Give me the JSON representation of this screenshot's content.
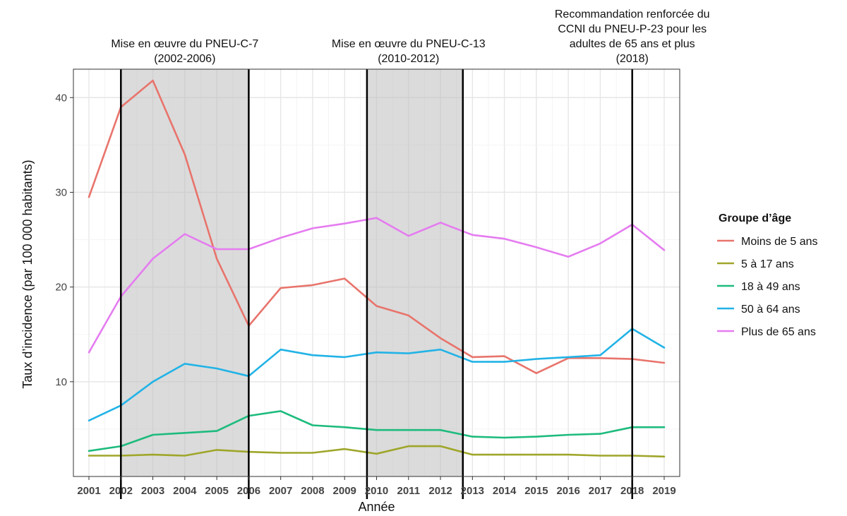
{
  "chart_data": {
    "type": "line",
    "xlabel": "Année",
    "ylabel": "Taux d’incidence (par 100 000 habitants)",
    "x": [
      2001,
      2002,
      2003,
      2004,
      2005,
      2006,
      2007,
      2008,
      2009,
      2010,
      2011,
      2012,
      2013,
      2014,
      2015,
      2016,
      2017,
      2018,
      2019
    ],
    "xlim": [
      2001,
      2019
    ],
    "ylim": [
      0,
      43
    ],
    "yticks": [
      10,
      20,
      30,
      40
    ],
    "grid": true,
    "legend": {
      "title": "Groupe d’âge",
      "placement": "right"
    },
    "series": [
      {
        "name": "Moins de 5 ans",
        "color": "#e8746c",
        "values": [
          29.5,
          39.0,
          41.8,
          34.0,
          23.0,
          15.9,
          19.9,
          20.2,
          20.9,
          18.0,
          17.0,
          14.6,
          12.6,
          12.7,
          10.9,
          12.5,
          12.5,
          12.4,
          12.0
        ]
      },
      {
        "name": "5 à 17 ans",
        "color": "#9fa62a",
        "values": [
          2.2,
          2.2,
          2.3,
          2.2,
          2.8,
          2.6,
          2.5,
          2.5,
          2.9,
          2.4,
          3.2,
          3.2,
          2.3,
          2.3,
          2.3,
          2.3,
          2.2,
          2.2,
          2.1
        ]
      },
      {
        "name": "18 à 49 ans",
        "color": "#1dbb7d",
        "values": [
          2.7,
          3.2,
          4.4,
          4.6,
          4.8,
          6.4,
          6.9,
          5.4,
          5.2,
          4.9,
          4.9,
          4.9,
          4.2,
          4.1,
          4.2,
          4.4,
          4.5,
          5.2,
          5.2
        ]
      },
      {
        "name": "50 à 64 ans",
        "color": "#22b3e6",
        "values": [
          5.9,
          7.5,
          10.0,
          11.9,
          11.4,
          10.6,
          13.4,
          12.8,
          12.6,
          13.1,
          13.0,
          13.4,
          12.1,
          12.1,
          12.4,
          12.6,
          12.8,
          15.6,
          13.6
        ]
      },
      {
        "name": "Plus de 65 ans",
        "color": "#e57cf0",
        "values": [
          13.1,
          19.0,
          23.0,
          25.6,
          24.0,
          24.0,
          25.2,
          26.2,
          26.7,
          27.3,
          25.4,
          26.8,
          25.5,
          25.1,
          24.2,
          23.2,
          24.6,
          26.6,
          23.9
        ]
      }
    ],
    "shaded_periods": [
      {
        "start": 2002,
        "end": 2006
      },
      {
        "start": 2009.7,
        "end": 2012.7
      }
    ],
    "markers": [
      {
        "x": 2002
      },
      {
        "x": 2006
      },
      {
        "x": 2009.7
      },
      {
        "x": 2012.7
      },
      {
        "x": 2018
      }
    ],
    "annotations": [
      {
        "lines": [
          "Mise en œuvre du PNEU-C-7",
          "(2002-2006)"
        ],
        "x": 2004
      },
      {
        "lines": [
          "Mise en œuvre du PNEU-C-13",
          "(2010-2012)"
        ],
        "x": 2011
      },
      {
        "lines": [
          "Recommandation renforcée du",
          "CCNI du PNEU-P-23 pour les",
          "adultes de 65 ans et plus",
          "(2018)"
        ],
        "x": 2018
      }
    ]
  }
}
